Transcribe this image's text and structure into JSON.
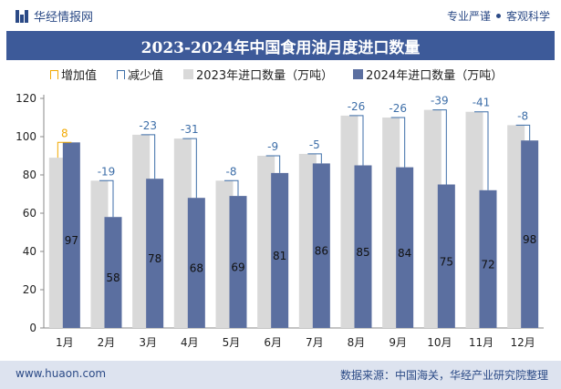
{
  "header": {
    "brand": "华经情报网",
    "tag1": "专业严谨",
    "tag2": "客观科学"
  },
  "title": "2023-2024年中国食用油月度进口数量",
  "legend": {
    "increase": "增加值",
    "decrease": "减少值",
    "series2023": "2023年进口数量（万吨）",
    "series2024": "2024年进口数量（万吨）"
  },
  "footer": {
    "website": "www.huaon.com",
    "source": "数据来源：中国海关，华经产业研究院整理"
  },
  "colors": {
    "series2023": "#d9d9d9",
    "series2024": "#5b6fa0",
    "increase": "#f2a900",
    "decrease": "#3d6ea8",
    "title_bg": "#3d5a99"
  },
  "chart_data": {
    "type": "bar",
    "categories": [
      "1月",
      "2月",
      "3月",
      "4月",
      "5月",
      "6月",
      "7月",
      "8月",
      "9月",
      "10月",
      "11月",
      "12月"
    ],
    "series": [
      {
        "name": "2023年进口数量（万吨）",
        "values": [
          89,
          77,
          101,
          99,
          77,
          90,
          91,
          111,
          110,
          114,
          113,
          106
        ]
      },
      {
        "name": "2024年进口数量（万吨）",
        "values": [
          97,
          58,
          78,
          68,
          69,
          81,
          86,
          85,
          84,
          75,
          72,
          98
        ]
      }
    ],
    "change": [
      8,
      -19,
      -23,
      -31,
      -8,
      -9,
      -5,
      -26,
      -26,
      -39,
      -41,
      -8
    ],
    "ylim": [
      0,
      120
    ],
    "yticks": [
      0,
      20,
      40,
      60,
      80,
      100,
      120
    ],
    "xlabel": "",
    "ylabel": "",
    "grid": false,
    "legend_position": "top"
  }
}
